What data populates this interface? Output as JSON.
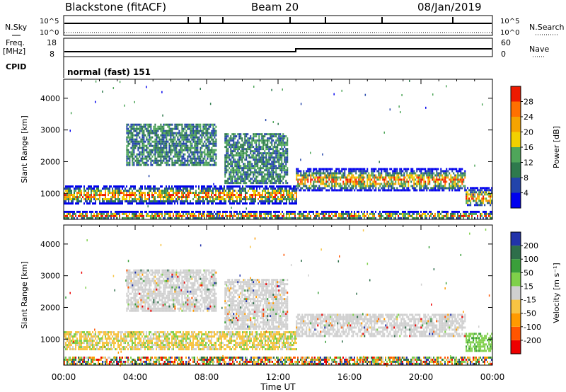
{
  "header": {
    "radar": "Blackstone (fitACF)",
    "beam": "Beam 20",
    "date": "08/Jan/2019"
  },
  "status_panels": {
    "nsky_label": "N.Sky",
    "nsearch_label": "N.Search",
    "freq_label_1": "Freq.",
    "freq_label_2": "[MHz]",
    "nave_label": "Nave",
    "cpid_label": "CPID",
    "noise_ticks": [
      "10^5",
      "10^0"
    ],
    "freq_ticks": [
      "18",
      "8"
    ],
    "nave_ticks": [
      "60",
      "0"
    ],
    "cpid_value": "normal (fast) 151"
  },
  "chart_data": [
    {
      "type": "heatmap",
      "title": "Power",
      "ylabel": "Slant Range [km]",
      "xlabel": "",
      "xlim": [
        0,
        24
      ],
      "ylim": [
        180,
        4600
      ],
      "yticks": [
        1000,
        2000,
        3000,
        4000
      ],
      "colorbar": {
        "label": "Power [dB]",
        "ticks": [
          "4",
          "8",
          "12",
          "16",
          "20",
          "24",
          "28"
        ],
        "range": [
          0,
          30
        ],
        "colors": [
          "#0000ee",
          "#2244aa",
          "#2e7a4d",
          "#4fa65a",
          "#f2d000",
          "#f5a300",
          "#ff7000",
          "#ee1a00"
        ]
      },
      "echo_regions": [
        {
          "t": [
            0.0,
            13.0
          ],
          "r": [
            700,
            1250
          ],
          "level": "high"
        },
        {
          "t": [
            3.5,
            8.5
          ],
          "r": [
            1900,
            3200
          ],
          "level": "low"
        },
        {
          "t": [
            9.0,
            12.5
          ],
          "r": [
            1300,
            2900
          ],
          "level": "low"
        },
        {
          "t": [
            13.0,
            22.5
          ],
          "r": [
            1100,
            1800
          ],
          "level": "high"
        },
        {
          "t": [
            22.5,
            24.0
          ],
          "r": [
            600,
            1200
          ],
          "level": "high"
        },
        {
          "t": [
            0.0,
            24.0
          ],
          "r": [
            200,
            450
          ],
          "level": "high"
        }
      ]
    },
    {
      "type": "heatmap",
      "title": "Velocity",
      "ylabel": "Slant Range [km]",
      "xlabel": "Time UT",
      "xlim": [
        0,
        24
      ],
      "ylim": [
        180,
        4600
      ],
      "xticks": [
        "00:00",
        "04:00",
        "08:00",
        "12:00",
        "16:00",
        "20:00",
        "00:00"
      ],
      "yticks": [
        1000,
        2000,
        3000,
        4000
      ],
      "colorbar": {
        "label": "Velocity [m s⁻¹]",
        "ticks": [
          "200",
          "100",
          "50",
          "15",
          "-15",
          "-50",
          "-100",
          "-200"
        ],
        "range": [
          -250,
          250
        ],
        "colors": [
          "#2233aa",
          "#2e6e4a",
          "#3a9f3a",
          "#7fd04a",
          "#cfcfcf",
          "#f7c443",
          "#ff9a00",
          "#ff5500",
          "#ee0000"
        ]
      },
      "echo_regions": [
        {
          "t": [
            0.0,
            13.0
          ],
          "r": [
            700,
            1250
          ],
          "level": "negative"
        },
        {
          "t": [
            3.5,
            8.5
          ],
          "r": [
            1900,
            3200
          ],
          "level": "ground"
        },
        {
          "t": [
            9.0,
            12.5
          ],
          "r": [
            1300,
            2900
          ],
          "level": "ground"
        },
        {
          "t": [
            13.0,
            22.5
          ],
          "r": [
            1100,
            1800
          ],
          "level": "ground"
        },
        {
          "t": [
            22.5,
            24.0
          ],
          "r": [
            600,
            1200
          ],
          "level": "positive"
        },
        {
          "t": [
            0.0,
            24.0
          ],
          "r": [
            200,
            450
          ],
          "level": "mixed"
        }
      ]
    }
  ]
}
